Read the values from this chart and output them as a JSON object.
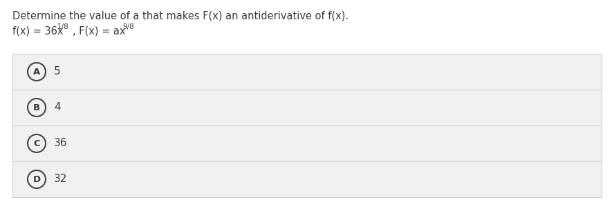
{
  "title": "Determine the value of a that makes F(x) an antiderivative of f(x).",
  "options": [
    {
      "letter": "A",
      "text": "5"
    },
    {
      "letter": "B",
      "text": "4"
    },
    {
      "letter": "C",
      "text": "36"
    },
    {
      "letter": "D",
      "text": "32"
    }
  ],
  "bg_color": "#ffffff",
  "option_bg_color": "#f0f0f0",
  "option_border_color": "#d0d0d0",
  "title_color": "#3a3a3a",
  "option_text_color": "#3a3a3a",
  "circle_edge_color": "#444444",
  "title_fontsize": 10.5,
  "formula_fontsize": 10.5,
  "option_fontsize": 11,
  "letter_fontsize": 9.5
}
